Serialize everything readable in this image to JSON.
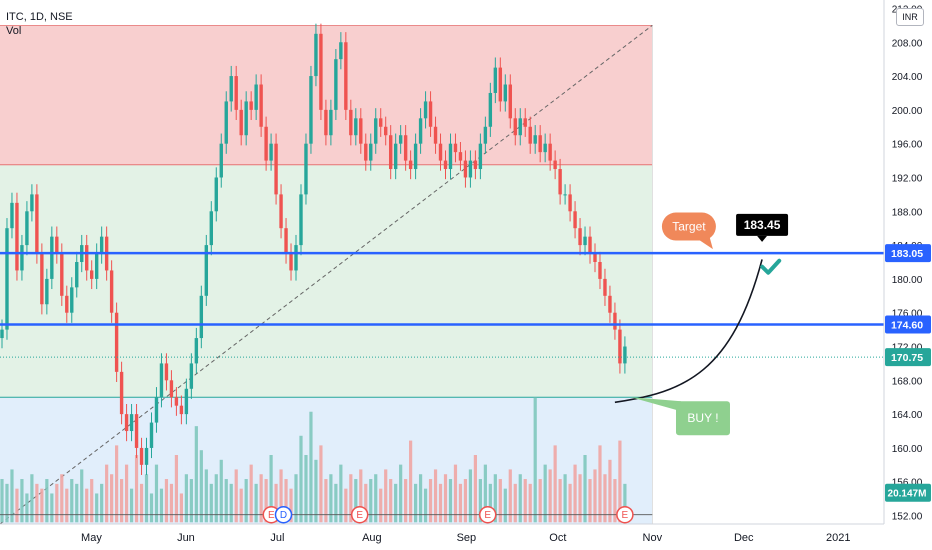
{
  "header": {
    "symbol_line": "ITC, 1D, NSE",
    "volume_label": "Vol",
    "currency": "INR"
  },
  "colors": {
    "up": "#26a69a",
    "down": "#ef5350",
    "level_line": "#2962ff",
    "red_zone": "#f8cfcf",
    "green_zone": "#e3f2e6",
    "blue_zone": "#e1eefb",
    "target_callout": "#f0885a",
    "buy_callout": "#8fd08f"
  },
  "chart_data": {
    "type": "candlestick",
    "title": "ITC, 1D, NSE",
    "ylim": [
      151,
      213
    ],
    "y_ticks": [
      212,
      208,
      204,
      200,
      196,
      192,
      188,
      184,
      180,
      176,
      172,
      168,
      164,
      160,
      156,
      152
    ],
    "y_tick_labels": [
      "212.00",
      "208.00",
      "204.00",
      "200.00",
      "196.00",
      "192.00",
      "188.00",
      "184.00",
      "180.00",
      "176.00",
      "172.00",
      "168.00",
      "164.00",
      "160.00",
      "156.00",
      "152.00"
    ],
    "x_labels": [
      "May",
      "Jun",
      "Jul",
      "Aug",
      "Sep",
      "Oct",
      "Nov",
      "Dec",
      "2021"
    ],
    "start_date": "2020-04-01",
    "end_date": "2021-01-16",
    "month_dates": [
      "2020-05-01",
      "2020-06-01",
      "2020-07-01",
      "2020-08-01",
      "2020-09-01",
      "2020-10-01",
      "2020-11-01",
      "2020-12-01",
      "2021-01-01"
    ],
    "closes": [
      174,
      186,
      189,
      181,
      184,
      188,
      190,
      183,
      177,
      180,
      185,
      183,
      178,
      176,
      179,
      182,
      184,
      181,
      180,
      183,
      185,
      181,
      176,
      169,
      164,
      162,
      164,
      160,
      158,
      160,
      163,
      166,
      170,
      168,
      166,
      165,
      164,
      167,
      170,
      173,
      178,
      184,
      188,
      192,
      196,
      201,
      204,
      200,
      197,
      201,
      200,
      203,
      198,
      194,
      196,
      190,
      186,
      183,
      181,
      184,
      190,
      196,
      204,
      209,
      200,
      197,
      200,
      206,
      208,
      200,
      197,
      199,
      196,
      194,
      196,
      199,
      198,
      197,
      193,
      196,
      197,
      194,
      193,
      196,
      199,
      201,
      198,
      196,
      194,
      193,
      196,
      195,
      194,
      192,
      194,
      193,
      196,
      198,
      202,
      205,
      201,
      203,
      199,
      197,
      199,
      198,
      196,
      197,
      195,
      196,
      194,
      193,
      190,
      190,
      188,
      186,
      184,
      185,
      183,
      182,
      180,
      178,
      176,
      174,
      170,
      172,
      168,
      171,
      174,
      172,
      170,
      169,
      168,
      170,
      169,
      167,
      174,
      172,
      167,
      168,
      167,
      166,
      168,
      168,
      170.75
    ],
    "volumes": [
      9,
      8,
      11,
      7,
      9,
      6,
      10,
      8,
      7,
      9,
      6,
      8,
      10,
      7,
      9,
      8,
      11,
      7,
      9,
      6,
      8,
      12,
      10,
      16,
      9,
      12,
      7,
      14,
      8,
      10,
      6,
      12,
      7,
      9,
      8,
      14,
      6,
      10,
      9,
      20,
      15,
      11,
      8,
      10,
      13,
      9,
      8,
      11,
      7,
      9,
      12,
      8,
      10,
      9,
      14,
      8,
      11,
      9,
      7,
      10,
      18,
      14,
      23,
      13,
      16,
      9,
      10,
      8,
      12,
      7,
      10,
      9,
      11,
      8,
      9,
      10,
      7,
      11,
      9,
      8,
      12,
      9,
      17,
      8,
      10,
      7,
      9,
      11,
      8,
      10,
      9,
      12,
      8,
      9,
      11,
      14,
      9,
      12,
      8,
      10,
      9,
      7,
      11,
      8,
      10,
      9,
      8,
      26,
      9,
      12,
      11,
      16,
      9,
      10,
      8,
      12,
      10,
      14,
      9,
      11,
      16,
      10,
      13,
      9,
      17,
      8,
      11,
      10,
      9,
      8,
      12,
      9,
      10,
      8,
      11,
      18,
      9,
      8,
      10,
      11,
      9,
      12,
      8,
      10,
      9
    ],
    "horizontal_levels": [
      {
        "price": 183.05,
        "label": "183.05",
        "style": "solid"
      },
      {
        "price": 174.6,
        "label": "174.60",
        "style": "solid"
      },
      {
        "price": 170.75,
        "label": "170.75",
        "style": "dotted"
      }
    ],
    "fib_zones": {
      "top": 210,
      "mid_high": 193.5,
      "mid_low": 166,
      "bottom": 151
    },
    "volume_last_label": "20.147M",
    "events": [
      {
        "date": "2020-06-29",
        "label": "E"
      },
      {
        "date": "2020-07-03",
        "label": "D"
      },
      {
        "date": "2020-07-28",
        "label": "E"
      },
      {
        "date": "2020-09-08",
        "label": "E"
      },
      {
        "date": "2020-10-23",
        "label": "E"
      }
    ],
    "projection": {
      "to_date": "2020-12-07",
      "to_price": 182.3
    },
    "target_callout": {
      "label": "Target",
      "date": "2020-11-13"
    },
    "target_value_callout": {
      "label": "183.45",
      "date": "2020-12-07"
    },
    "buy_callout": {
      "label": "BUY !",
      "date": "2020-10-25",
      "price": 166
    },
    "check_mark": {
      "date": "2020-12-10",
      "price": 181.2
    }
  }
}
